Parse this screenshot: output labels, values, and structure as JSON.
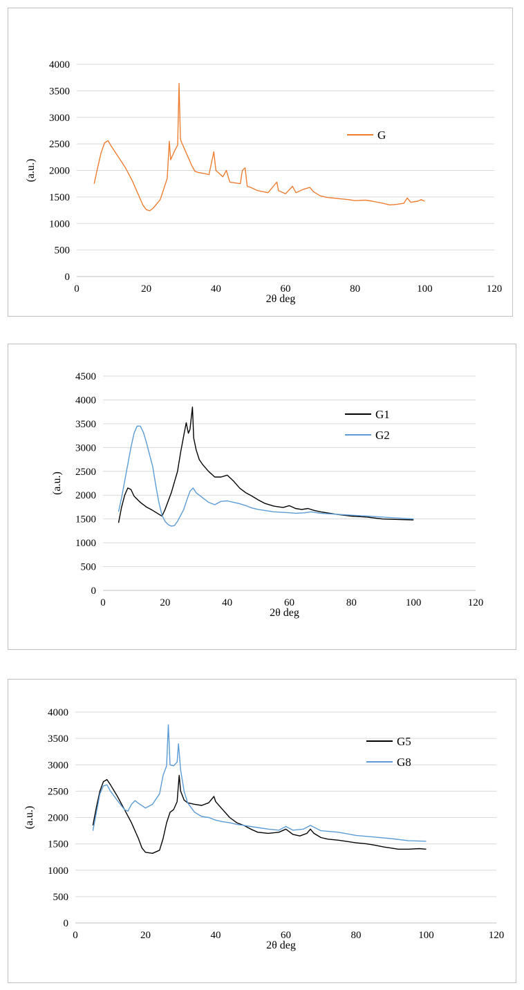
{
  "chart_data": [
    {
      "type": "line",
      "title": "",
      "xlabel": "2θ deg",
      "ylabel": "(a.u.)",
      "xlim": [
        0,
        120
      ],
      "ylim": [
        0,
        4000
      ],
      "xticks": [
        0,
        20,
        40,
        60,
        80,
        100,
        120
      ],
      "yticks": [
        0,
        500,
        1000,
        1500,
        2000,
        2500,
        3000,
        3500,
        4000
      ],
      "grid": "horizontal",
      "legend": "right",
      "series": [
        {
          "name": "G",
          "color": "#ed7d31",
          "points": [
            [
              5,
              1750
            ],
            [
              6,
              2050
            ],
            [
              7,
              2330
            ],
            [
              8,
              2520
            ],
            [
              9,
              2560
            ],
            [
              10,
              2450
            ],
            [
              12,
              2250
            ],
            [
              14,
              2050
            ],
            [
              16,
              1800
            ],
            [
              18,
              1500
            ],
            [
              19,
              1350
            ],
            [
              20,
              1260
            ],
            [
              21,
              1240
            ],
            [
              22,
              1290
            ],
            [
              24,
              1450
            ],
            [
              26,
              1850
            ],
            [
              26.6,
              2550
            ],
            [
              27,
              2200
            ],
            [
              28,
              2350
            ],
            [
              29,
              2480
            ],
            [
              29.4,
              3640
            ],
            [
              29.8,
              2600
            ],
            [
              30,
              2550
            ],
            [
              31,
              2400
            ],
            [
              32,
              2250
            ],
            [
              33,
              2100
            ],
            [
              34,
              1980
            ],
            [
              35,
              1960
            ],
            [
              36,
              1950
            ],
            [
              38,
              1920
            ],
            [
              39.4,
              2350
            ],
            [
              40,
              2000
            ],
            [
              42,
              1880
            ],
            [
              43,
              2000
            ],
            [
              44,
              1780
            ],
            [
              46,
              1760
            ],
            [
              47,
              1750
            ],
            [
              47.6,
              2000
            ],
            [
              48.4,
              2050
            ],
            [
              49,
              1700
            ],
            [
              50,
              1680
            ],
            [
              52,
              1620
            ],
            [
              55,
              1580
            ],
            [
              57.5,
              1780
            ],
            [
              58,
              1620
            ],
            [
              60,
              1560
            ],
            [
              62,
              1700
            ],
            [
              63,
              1580
            ],
            [
              65,
              1640
            ],
            [
              67,
              1680
            ],
            [
              68,
              1600
            ],
            [
              70,
              1520
            ],
            [
              72,
              1490
            ],
            [
              75,
              1470
            ],
            [
              78,
              1450
            ],
            [
              80,
              1430
            ],
            [
              83,
              1440
            ],
            [
              85,
              1420
            ],
            [
              88,
              1380
            ],
            [
              90,
              1350
            ],
            [
              92,
              1360
            ],
            [
              94,
              1380
            ],
            [
              95,
              1480
            ],
            [
              96,
              1400
            ],
            [
              98,
              1420
            ],
            [
              99,
              1450
            ],
            [
              100,
              1420
            ]
          ]
        }
      ]
    },
    {
      "type": "line",
      "title": "",
      "xlabel": "2θ deg",
      "ylabel": "(a.u.)",
      "xlim": [
        0,
        120
      ],
      "ylim": [
        0,
        4500
      ],
      "xticks": [
        0,
        20,
        40,
        60,
        80,
        100,
        120
      ],
      "yticks": [
        0,
        500,
        1000,
        1500,
        2000,
        2500,
        3000,
        3500,
        4000,
        4500
      ],
      "grid": "horizontal",
      "legend": "right",
      "series": [
        {
          "name": "G1",
          "color": "#000000",
          "points": [
            [
              5,
              1420
            ],
            [
              6,
              1750
            ],
            [
              7,
              2000
            ],
            [
              8,
              2150
            ],
            [
              9,
              2120
            ],
            [
              10,
              1980
            ],
            [
              12,
              1850
            ],
            [
              14,
              1750
            ],
            [
              16,
              1680
            ],
            [
              18,
              1600
            ],
            [
              19,
              1560
            ],
            [
              20,
              1700
            ],
            [
              22,
              2050
            ],
            [
              24,
              2500
            ],
            [
              25,
              2900
            ],
            [
              26,
              3250
            ],
            [
              26.8,
              3520
            ],
            [
              27.5,
              3300
            ],
            [
              28,
              3380
            ],
            [
              28.8,
              3850
            ],
            [
              29.2,
              3200
            ],
            [
              30,
              2950
            ],
            [
              31,
              2750
            ],
            [
              32,
              2650
            ],
            [
              34,
              2500
            ],
            [
              36,
              2380
            ],
            [
              38,
              2380
            ],
            [
              40,
              2420
            ],
            [
              42,
              2300
            ],
            [
              44,
              2150
            ],
            [
              46,
              2050
            ],
            [
              48,
              1980
            ],
            [
              50,
              1900
            ],
            [
              52,
              1830
            ],
            [
              55,
              1770
            ],
            [
              58,
              1740
            ],
            [
              60,
              1780
            ],
            [
              62,
              1720
            ],
            [
              64,
              1700
            ],
            [
              66,
              1720
            ],
            [
              68,
              1680
            ],
            [
              70,
              1650
            ],
            [
              75,
              1600
            ],
            [
              80,
              1560
            ],
            [
              85,
              1540
            ],
            [
              90,
              1500
            ],
            [
              95,
              1490
            ],
            [
              100,
              1480
            ]
          ]
        },
        {
          "name": "G2",
          "color": "#5b9bd5",
          "points": [
            [
              5,
              1650
            ],
            [
              6,
              1950
            ],
            [
              7,
              2300
            ],
            [
              8,
              2650
            ],
            [
              9,
              3000
            ],
            [
              10,
              3300
            ],
            [
              11,
              3450
            ],
            [
              12,
              3450
            ],
            [
              13,
              3320
            ],
            [
              14,
              3100
            ],
            [
              16,
              2600
            ],
            [
              17,
              2200
            ],
            [
              18,
              1850
            ],
            [
              19,
              1580
            ],
            [
              20,
              1450
            ],
            [
              21,
              1380
            ],
            [
              22,
              1350
            ],
            [
              23,
              1360
            ],
            [
              24,
              1450
            ],
            [
              26,
              1700
            ],
            [
              27,
              1900
            ],
            [
              28,
              2080
            ],
            [
              29,
              2150
            ],
            [
              30,
              2050
            ],
            [
              32,
              1950
            ],
            [
              34,
              1850
            ],
            [
              36,
              1800
            ],
            [
              38,
              1870
            ],
            [
              40,
              1880
            ],
            [
              42,
              1850
            ],
            [
              44,
              1820
            ],
            [
              46,
              1780
            ],
            [
              48,
              1730
            ],
            [
              50,
              1700
            ],
            [
              55,
              1650
            ],
            [
              60,
              1630
            ],
            [
              62,
              1620
            ],
            [
              65,
              1630
            ],
            [
              67,
              1650
            ],
            [
              70,
              1620
            ],
            [
              75,
              1600
            ],
            [
              80,
              1580
            ],
            [
              85,
              1560
            ],
            [
              90,
              1540
            ],
            [
              95,
              1520
            ],
            [
              100,
              1500
            ]
          ]
        }
      ]
    },
    {
      "type": "line",
      "title": "",
      "xlabel": "2θ deg",
      "ylabel": "(a.u.)",
      "xlim": [
        0,
        120
      ],
      "ylim": [
        0,
        4000
      ],
      "xticks": [
        0,
        20,
        40,
        60,
        80,
        100,
        120
      ],
      "yticks": [
        0,
        500,
        1000,
        1500,
        2000,
        2500,
        3000,
        3500,
        4000
      ],
      "grid": "horizontal",
      "legend": "right",
      "series": [
        {
          "name": "G5",
          "color": "#000000",
          "points": [
            [
              5,
              1850
            ],
            [
              6,
              2200
            ],
            [
              7,
              2500
            ],
            [
              8,
              2680
            ],
            [
              9,
              2720
            ],
            [
              10,
              2620
            ],
            [
              12,
              2400
            ],
            [
              14,
              2150
            ],
            [
              16,
              1900
            ],
            [
              18,
              1600
            ],
            [
              19,
              1420
            ],
            [
              20,
              1340
            ],
            [
              22,
              1320
            ],
            [
              24,
              1380
            ],
            [
              25,
              1600
            ],
            [
              26,
              1900
            ],
            [
              27,
              2100
            ],
            [
              28,
              2150
            ],
            [
              29,
              2300
            ],
            [
              29.6,
              2800
            ],
            [
              30,
              2500
            ],
            [
              31,
              2330
            ],
            [
              32,
              2280
            ],
            [
              34,
              2250
            ],
            [
              36,
              2230
            ],
            [
              38,
              2280
            ],
            [
              39.5,
              2400
            ],
            [
              40,
              2300
            ],
            [
              42,
              2150
            ],
            [
              44,
              2000
            ],
            [
              46,
              1900
            ],
            [
              48,
              1850
            ],
            [
              50,
              1780
            ],
            [
              52,
              1720
            ],
            [
              55,
              1700
            ],
            [
              58,
              1720
            ],
            [
              60,
              1780
            ],
            [
              62,
              1680
            ],
            [
              64,
              1650
            ],
            [
              66,
              1700
            ],
            [
              67,
              1780
            ],
            [
              68,
              1700
            ],
            [
              70,
              1620
            ],
            [
              72,
              1590
            ],
            [
              75,
              1570
            ],
            [
              78,
              1540
            ],
            [
              80,
              1520
            ],
            [
              83,
              1500
            ],
            [
              85,
              1480
            ],
            [
              88,
              1440
            ],
            [
              90,
              1420
            ],
            [
              92,
              1400
            ],
            [
              95,
              1400
            ],
            [
              98,
              1410
            ],
            [
              100,
              1400
            ]
          ]
        },
        {
          "name": "G8",
          "color": "#5b9bd5",
          "points": [
            [
              5,
              1750
            ],
            [
              6,
              2100
            ],
            [
              7,
              2450
            ],
            [
              8,
              2600
            ],
            [
              9,
              2620
            ],
            [
              10,
              2500
            ],
            [
              12,
              2320
            ],
            [
              14,
              2150
            ],
            [
              15,
              2120
            ],
            [
              16,
              2250
            ],
            [
              17,
              2320
            ],
            [
              18,
              2270
            ],
            [
              20,
              2180
            ],
            [
              22,
              2250
            ],
            [
              24,
              2450
            ],
            [
              25,
              2800
            ],
            [
              26,
              2980
            ],
            [
              26.5,
              3760
            ],
            [
              27,
              3000
            ],
            [
              28,
              2980
            ],
            [
              29,
              3050
            ],
            [
              29.4,
              3400
            ],
            [
              30,
              2900
            ],
            [
              31,
              2500
            ],
            [
              32,
              2280
            ],
            [
              34,
              2100
            ],
            [
              36,
              2020
            ],
            [
              38,
              2000
            ],
            [
              40,
              1950
            ],
            [
              42,
              1920
            ],
            [
              44,
              1900
            ],
            [
              46,
              1870
            ],
            [
              48,
              1850
            ],
            [
              50,
              1830
            ],
            [
              55,
              1780
            ],
            [
              58,
              1760
            ],
            [
              60,
              1830
            ],
            [
              62,
              1760
            ],
            [
              65,
              1780
            ],
            [
              67,
              1850
            ],
            [
              70,
              1750
            ],
            [
              75,
              1720
            ],
            [
              80,
              1660
            ],
            [
              85,
              1630
            ],
            [
              90,
              1600
            ],
            [
              95,
              1560
            ],
            [
              100,
              1550
            ]
          ]
        }
      ]
    }
  ]
}
